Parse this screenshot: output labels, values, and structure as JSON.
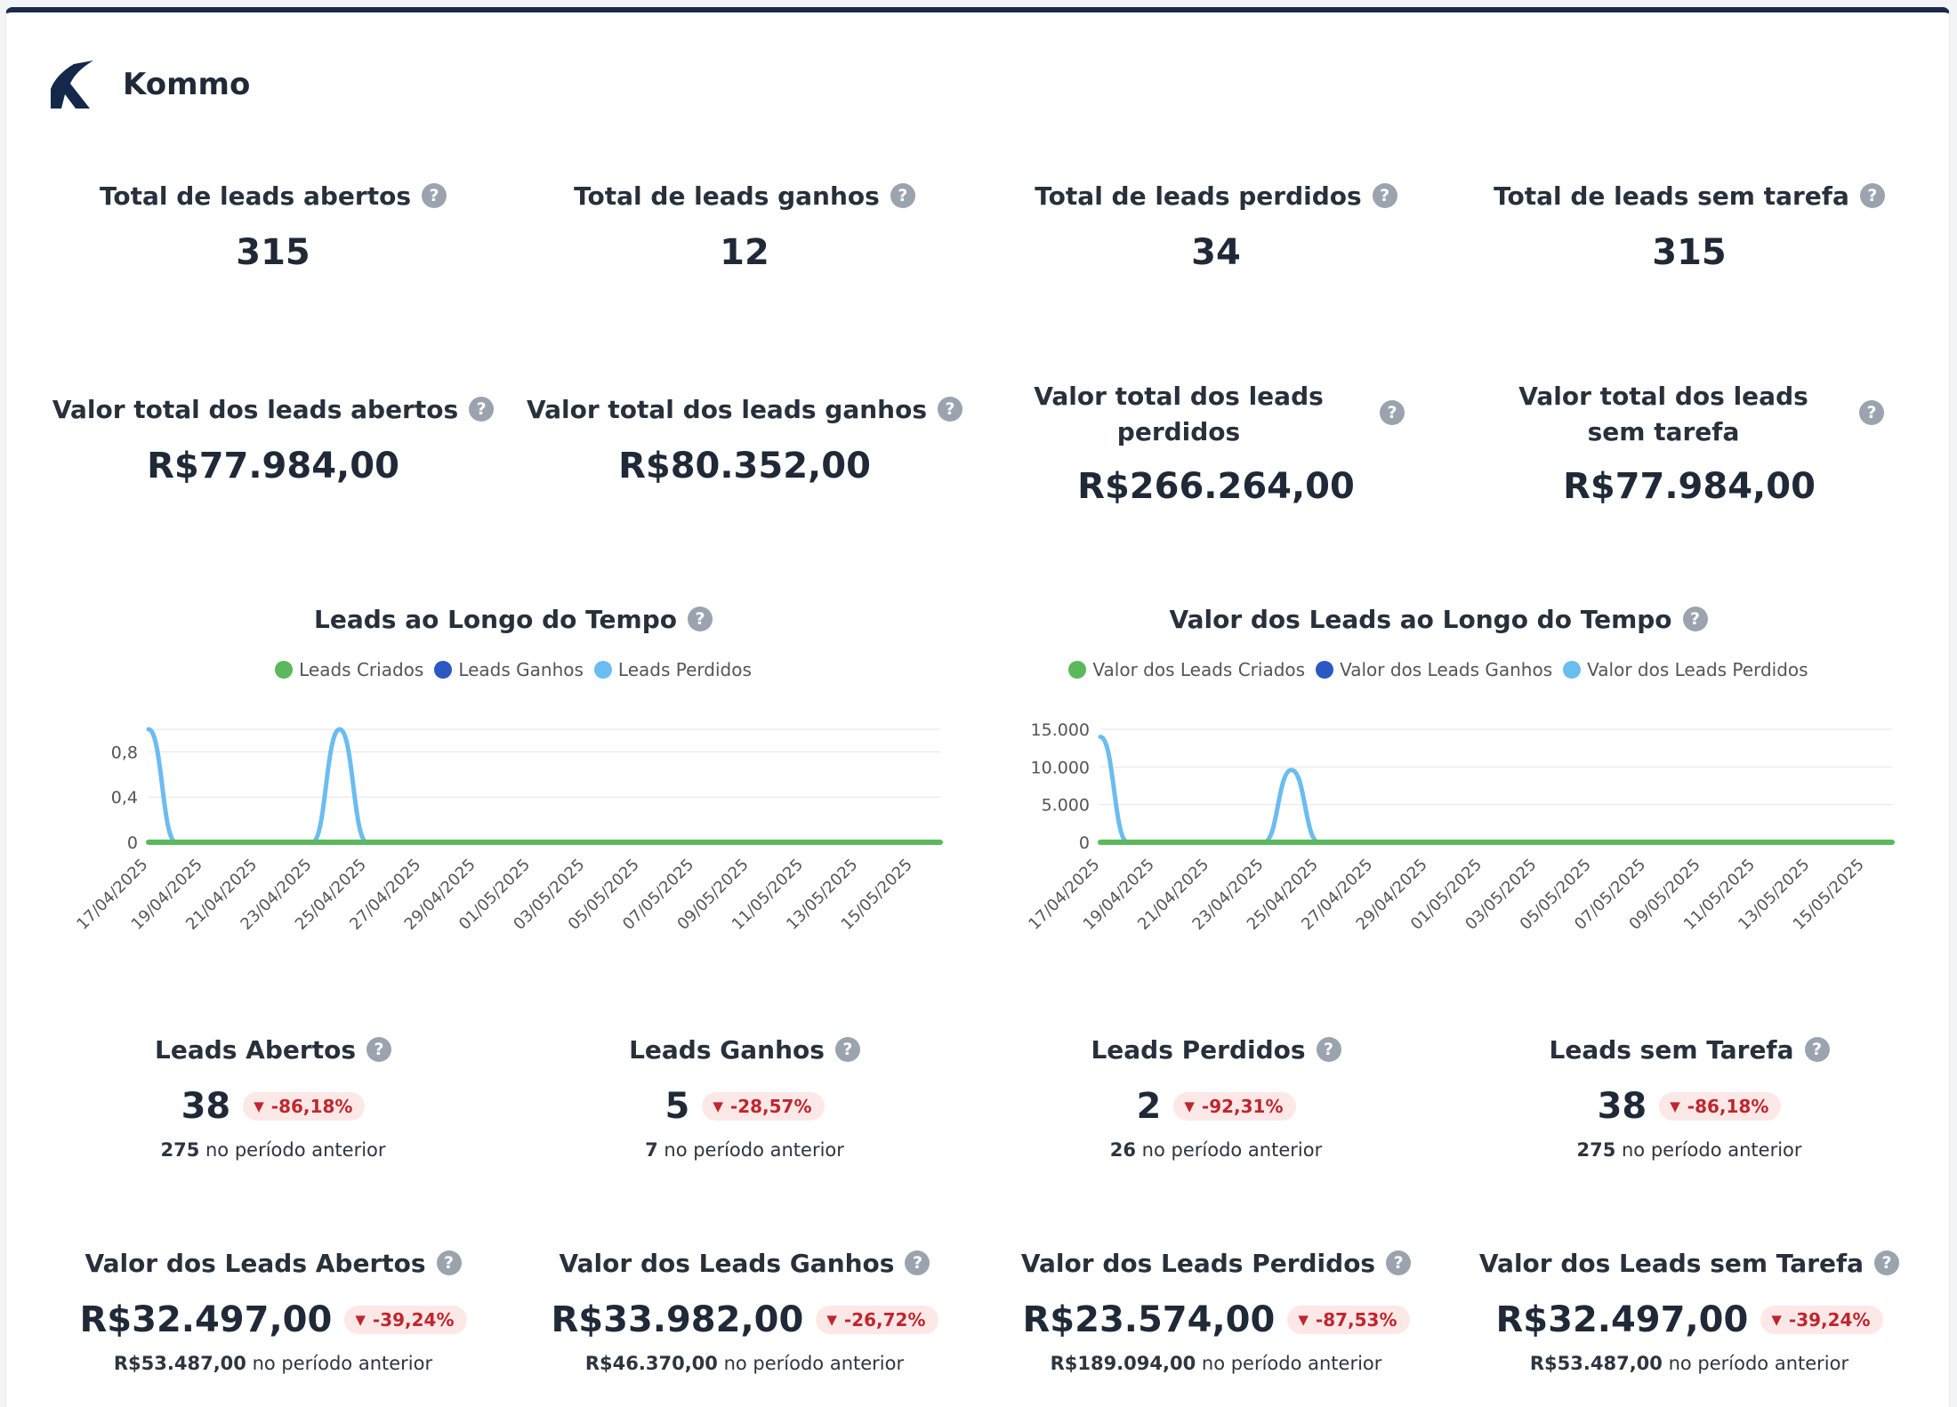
{
  "brand": {
    "name": "Kommo"
  },
  "help_glyph": "?",
  "kpis": [
    {
      "title": "Total de leads abertos",
      "value": "315"
    },
    {
      "title": "Total de leads ganhos",
      "value": "12"
    },
    {
      "title": "Total de leads perdidos",
      "value": "34"
    },
    {
      "title": "Total de leads sem tarefa",
      "value": "315"
    }
  ],
  "values": [
    {
      "title": "Valor total dos leads abertos",
      "value": "R$77.984,00"
    },
    {
      "title": "Valor total dos leads ganhos",
      "value": "R$80.352,00"
    },
    {
      "title": "Valor total dos leads perdidos",
      "value": "R$266.264,00"
    },
    {
      "title": "Valor total dos leads sem tarefa",
      "value": "R$77.984,00"
    }
  ],
  "chart_data": [
    {
      "type": "area",
      "title": "Leads ao Longo do Tempo",
      "x_tick_labels": [
        "17/04/2025",
        "19/04/2025",
        "21/04/2025",
        "23/04/2025",
        "25/04/2025",
        "27/04/2025",
        "29/04/2025",
        "01/05/2025",
        "03/05/2025",
        "05/05/2025",
        "07/05/2025",
        "09/05/2025",
        "11/05/2025",
        "13/05/2025",
        "15/05/2025"
      ],
      "y_tick_labels": [
        "0",
        "0,4",
        "0,8"
      ],
      "ylim": [
        0,
        1
      ],
      "x_range": [
        "17/04/2025",
        "16/05/2025"
      ],
      "series": [
        {
          "name": "Leads Criados",
          "color": "#5cb85c",
          "points": [
            [
              "17/04/2025",
              0
            ],
            [
              "16/05/2025",
              0
            ]
          ]
        },
        {
          "name": "Leads Ganhos",
          "color": "#2c58c4",
          "points": []
        },
        {
          "name": "Leads Perdidos",
          "color": "#6bbcf0",
          "points": [
            [
              "17/04/2025",
              1
            ],
            [
              "18/04/2025",
              0
            ],
            [
              "23/04/2025",
              0
            ],
            [
              "24/04/2025",
              1
            ],
            [
              "25/04/2025",
              0
            ]
          ]
        }
      ]
    },
    {
      "type": "area",
      "title": "Valor dos Leads ao Longo do Tempo",
      "x_tick_labels": [
        "17/04/2025",
        "19/04/2025",
        "21/04/2025",
        "23/04/2025",
        "25/04/2025",
        "27/04/2025",
        "29/04/2025",
        "01/05/2025",
        "03/05/2025",
        "05/05/2025",
        "07/05/2025",
        "09/05/2025",
        "11/05/2025",
        "13/05/2025",
        "15/05/2025"
      ],
      "y_tick_labels": [
        "0",
        "5.000",
        "10.000",
        "15.000"
      ],
      "ylim": [
        0,
        15000
      ],
      "x_range": [
        "17/04/2025",
        "16/05/2025"
      ],
      "series": [
        {
          "name": "Valor dos Leads Criados",
          "color": "#5cb85c",
          "points": [
            [
              "17/04/2025",
              0
            ],
            [
              "16/05/2025",
              0
            ]
          ]
        },
        {
          "name": "Valor dos Leads Ganhos",
          "color": "#2c58c4",
          "points": []
        },
        {
          "name": "Valor dos Leads Perdidos",
          "color": "#6bbcf0",
          "points": [
            [
              "17/04/2025",
              14000
            ],
            [
              "18/04/2025",
              0
            ],
            [
              "23/04/2025",
              0
            ],
            [
              "24/04/2025",
              9600
            ],
            [
              "25/04/2025",
              0
            ]
          ]
        }
      ]
    }
  ],
  "period_counts": [
    {
      "title": "Leads Abertos",
      "value": "38",
      "delta": "-86,18%",
      "prev_value": "275",
      "prev_label": " no período anterior"
    },
    {
      "title": "Leads Ganhos",
      "value": "5",
      "delta": "-28,57%",
      "prev_value": "7",
      "prev_label": " no período anterior"
    },
    {
      "title": "Leads Perdidos",
      "value": "2",
      "delta": "-92,31%",
      "prev_value": "26",
      "prev_label": " no período anterior"
    },
    {
      "title": "Leads sem Tarefa",
      "value": "38",
      "delta": "-86,18%",
      "prev_value": "275",
      "prev_label": " no período anterior"
    }
  ],
  "period_values": [
    {
      "title": "Valor dos Leads Abertos",
      "value": "R$32.497,00",
      "delta": "-39,24%",
      "prev_value": "R$53.487,00",
      "prev_label": " no período anterior"
    },
    {
      "title": "Valor dos Leads Ganhos",
      "value": "R$33.982,00",
      "delta": "-26,72%",
      "prev_value": "R$46.370,00",
      "prev_label": " no período anterior"
    },
    {
      "title": "Valor dos Leads Perdidos",
      "value": "R$23.574,00",
      "delta": "-87,53%",
      "prev_value": "R$189.094,00",
      "prev_label": " no período anterior"
    },
    {
      "title": "Valor dos Leads sem Tarefa",
      "value": "R$32.497,00",
      "delta": "-39,24%",
      "prev_value": "R$53.487,00",
      "prev_label": " no período anterior"
    }
  ]
}
